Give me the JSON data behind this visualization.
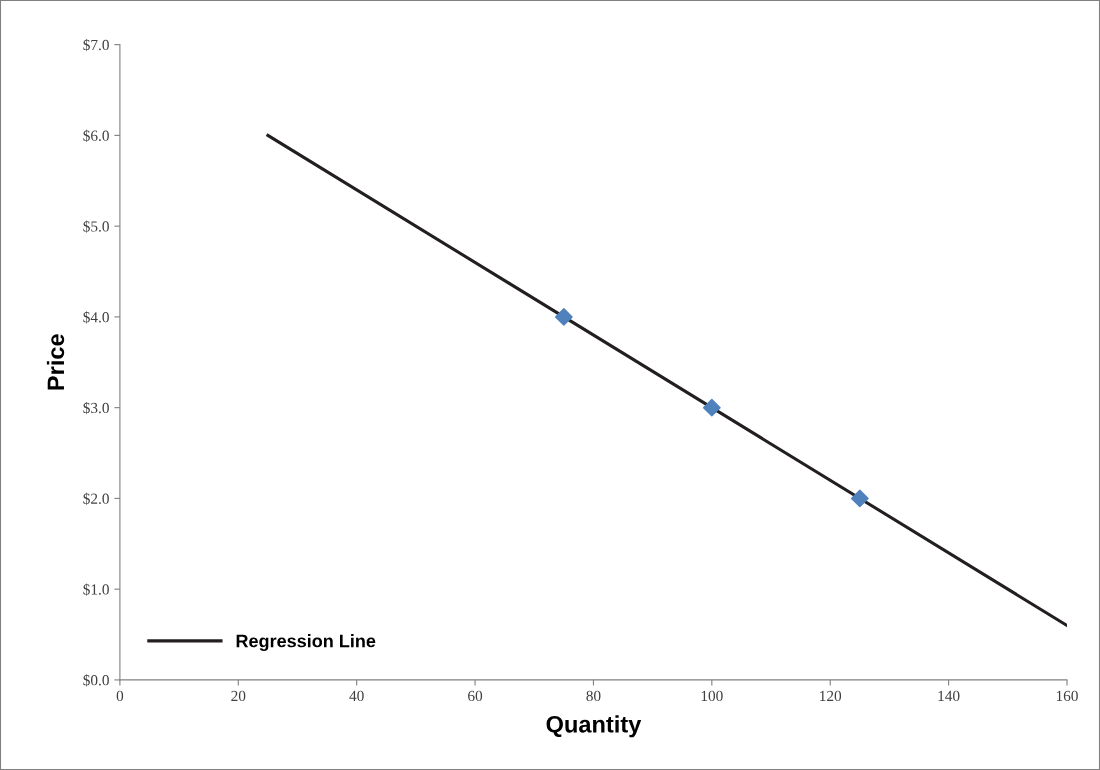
{
  "chart_data": {
    "type": "scatter",
    "xlabel": "Quantity",
    "ylabel": "Price",
    "series": [
      {
        "color": "#4f81bd",
        "x": [
          75,
          100,
          125
        ],
        "values": [
          4.0,
          3.0,
          2.0
        ],
        "marker": "diamond"
      },
      {
        "type": "line",
        "name": "Regression Line",
        "color": "#231f20",
        "x": [
          25,
          160
        ],
        "values": [
          6.0,
          0.6
        ],
        "marker": "none",
        "line_style": "solid"
      }
    ],
    "xlim": [
      0,
      160
    ],
    "xticks": [
      0,
      20,
      40,
      60,
      80,
      100,
      120,
      140,
      160
    ],
    "ylim": [
      0,
      7
    ],
    "yticks": [
      {
        "value": 0,
        "label": "$0.0"
      },
      {
        "value": 1,
        "label": "$1.0"
      },
      {
        "value": 2,
        "label": "$2.0"
      },
      {
        "value": 3,
        "label": "$3.0"
      },
      {
        "value": 4,
        "label": "$4.0"
      },
      {
        "value": 5,
        "label": "$5.0"
      },
      {
        "value": 6,
        "label": "$6.0"
      },
      {
        "value": 7,
        "label": "$7.0"
      }
    ],
    "grid": false,
    "legend": "bottom left"
  }
}
